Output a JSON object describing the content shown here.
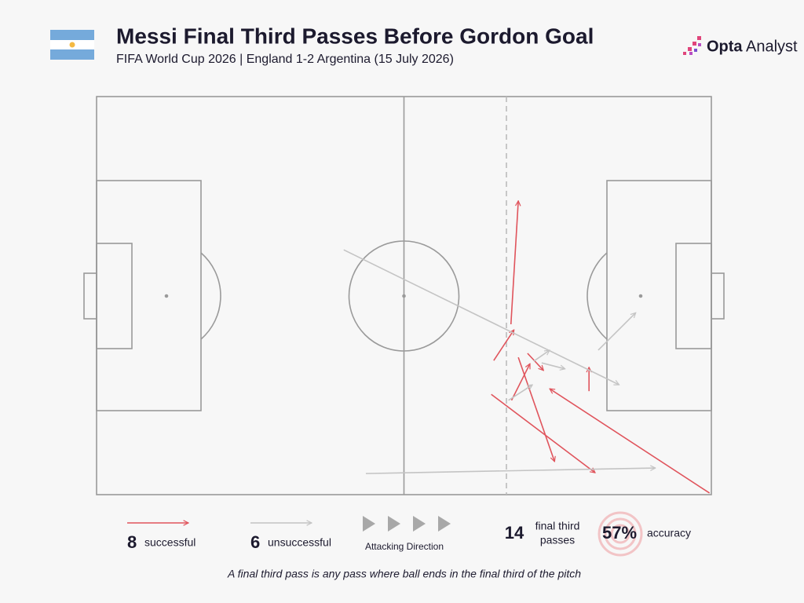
{
  "header": {
    "title": "Messi Final Third Passes Before Gordon Goal",
    "subtitle": "FIFA World Cup 2026 | England 1-2 Argentina (15 July 2026)",
    "brand_bold": "Opta",
    "brand_light": "Analyst"
  },
  "chart_data": {
    "type": "pass-map",
    "xlim": [
      0,
      100
    ],
    "ylim": [
      0,
      100
    ],
    "series": [
      {
        "name": "successful",
        "count": 8,
        "color": "#e0545c",
        "passes": [
          {
            "x": [
              67.4,
              68.6
            ],
            "y": [
              57.2,
              26.2
            ]
          },
          {
            "x": [
              64.6,
              67.9
            ],
            "y": [
              66.3,
              58.6
            ]
          },
          {
            "x": [
              68.6,
              74.5
            ],
            "y": [
              65.5,
              91.7
            ]
          },
          {
            "x": [
              67.5,
              70.5
            ],
            "y": [
              76.3,
              67.1
            ]
          },
          {
            "x": [
              70.1,
              72.7
            ],
            "y": [
              64.5,
              68.8
            ]
          },
          {
            "x": [
              80.1,
              80.1
            ],
            "y": [
              74.0,
              68.0
            ]
          },
          {
            "x": [
              64.2,
              81.1
            ],
            "y": [
              74.8,
              94.5
            ]
          },
          {
            "x": [
              99.7,
              73.7
            ],
            "y": [
              99.6,
              73.4
            ]
          }
        ]
      },
      {
        "name": "unsuccessful",
        "count": 6,
        "color": "#c4c4c4",
        "passes": [
          {
            "x": [
              40.2,
              85.0
            ],
            "y": [
              38.5,
              72.4
            ]
          },
          {
            "x": [
              43.8,
              90.9
            ],
            "y": [
              94.7,
              93.3
            ]
          },
          {
            "x": [
              81.6,
              87.7
            ],
            "y": [
              63.7,
              54.3
            ]
          },
          {
            "x": [
              67.0,
              70.9
            ],
            "y": [
              76.3,
              72.4
            ]
          },
          {
            "x": [
              71.1,
              73.7
            ],
            "y": [
              66.5,
              63.7
            ]
          },
          {
            "x": [
              72.4,
              76.2
            ],
            "y": [
              66.9,
              68.4
            ]
          }
        ]
      }
    ]
  },
  "legend": {
    "direction": "Attacking Direction"
  },
  "stats": {
    "total": 14,
    "total_label": [
      "final third",
      "passes"
    ],
    "accuracy": 57,
    "accuracy_label": "57%",
    "accuracy_text": "accuracy"
  },
  "footnote": "A final third pass is any pass where ball ends in the final third of the pitch"
}
